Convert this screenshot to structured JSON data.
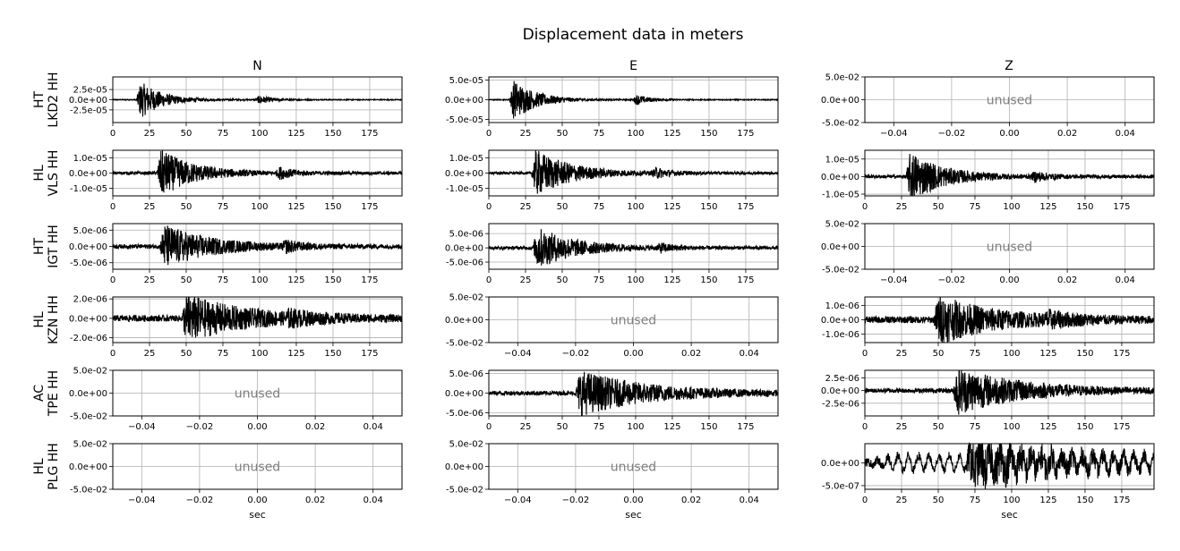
{
  "chart_data": {
    "type": "line",
    "title": "Displacement data in meters",
    "columns": [
      "N",
      "E",
      "Z"
    ],
    "xlabel": "sec",
    "unused_label": "unused",
    "line_color": "#000000",
    "grid": true,
    "time_xlim": [
      0,
      197
    ],
    "time_xticks": [
      "0",
      "25",
      "50",
      "75",
      "100",
      "125",
      "150",
      "175"
    ],
    "unused_xlim": [
      -0.05,
      0.05
    ],
    "unused_xticks": [
      "−0.04",
      "−0.02",
      "0.00",
      "0.02",
      "0.04"
    ],
    "unused_yticks": [
      "5.0e-02",
      "0.0e+00",
      "-5.0e-02"
    ],
    "stations": [
      {
        "network": "HT",
        "label": "LKD2 HH"
      },
      {
        "network": "HL",
        "label": "VLS HH"
      },
      {
        "network": "HT",
        "label": "IGT HH"
      },
      {
        "network": "HL",
        "label": "KZN HH"
      },
      {
        "network": "AC",
        "label": "TPE HH"
      },
      {
        "network": "HL",
        "label": "PLG HH"
      }
    ],
    "panels": [
      [
        {
          "used": true,
          "ylim": [
            -5.6e-05,
            5.6e-05
          ],
          "yticks": [
            2.5e-05,
            0,
            -2.5e-05
          ],
          "ytick_labels": [
            "2.5e-05",
            "0.0e+00",
            "-2.5e-05"
          ],
          "amplitude": 4.5e-05,
          "noise": 0.025,
          "events": [
            {
              "t": 19,
              "a": 1.0,
              "dur": 15
            },
            {
              "t": 100,
              "a": 0.22,
              "dur": 9
            }
          ]
        },
        {
          "used": true,
          "ylim": [
            -5.8e-05,
            5.8e-05
          ],
          "yticks": [
            5e-05,
            0,
            -5e-05
          ],
          "ytick_labels": [
            "5.0e-05",
            "0.0e+00",
            "-5.0e-05"
          ],
          "amplitude": 5e-05,
          "noise": 0.025,
          "events": [
            {
              "t": 17,
              "a": 1.0,
              "dur": 16
            },
            {
              "t": 101,
              "a": 0.25,
              "dur": 9
            }
          ]
        },
        {
          "used": false
        }
      ],
      [
        {
          "used": true,
          "ylim": [
            -1.5e-05,
            1.5e-05
          ],
          "yticks": [
            1e-05,
            0,
            -1e-05
          ],
          "ytick_labels": [
            "1.0e-05",
            "0.0e+00",
            "-1.0e-05"
          ],
          "amplitude": 1.5e-05,
          "noise": 0.07,
          "events": [
            {
              "t": 33,
              "a": 1.0,
              "dur": 22
            },
            {
              "t": 114,
              "a": 0.22,
              "dur": 9
            }
          ]
        },
        {
          "used": true,
          "ylim": [
            -1.5e-05,
            1.5e-05
          ],
          "yticks": [
            1e-05,
            0,
            -1e-05
          ],
          "ytick_labels": [
            "1.0e-05",
            "0.0e+00",
            "-1.0e-05"
          ],
          "amplitude": 1.5e-05,
          "noise": 0.06,
          "events": [
            {
              "t": 32,
              "a": 1.0,
              "dur": 24
            },
            {
              "t": 114,
              "a": 0.2,
              "dur": 9
            }
          ]
        },
        {
          "used": true,
          "ylim": [
            -1.1e-05,
            1.5e-05
          ],
          "yticks": [
            1e-05,
            0,
            -1e-05
          ],
          "ytick_labels": [
            "1.0e-05",
            "0.0e+00",
            "-1.0e-05"
          ],
          "amplitude": 1.4e-05,
          "noise": 0.07,
          "events": [
            {
              "t": 31,
              "a": 1.0,
              "dur": 22
            },
            {
              "t": 116,
              "a": 0.18,
              "dur": 9
            }
          ]
        }
      ],
      [
        {
          "used": true,
          "ylim": [
            -7e-06,
            7e-06
          ],
          "yticks": [
            5e-06,
            0,
            -5e-06
          ],
          "ytick_labels": [
            "5.0e-06",
            "0.0e+00",
            "-5.0e-06"
          ],
          "amplitude": 6.5e-06,
          "noise": 0.1,
          "events": [
            {
              "t": 35,
              "a": 1.0,
              "dur": 30
            },
            {
              "t": 118,
              "a": 0.22,
              "dur": 10
            }
          ]
        },
        {
          "used": true,
          "ylim": [
            -7.5e-06,
            8.5e-06
          ],
          "yticks": [
            5e-06,
            0,
            -5e-06
          ],
          "ytick_labels": [
            "5.0e-06",
            "0.0e+00",
            "-5.0e-06"
          ],
          "amplitude": 7e-06,
          "noise": 0.08,
          "events": [
            {
              "t": 33,
              "a": 1.0,
              "dur": 26
            },
            {
              "t": 117,
              "a": 0.18,
              "dur": 10
            }
          ]
        },
        {
          "used": false
        }
      ],
      [
        {
          "used": true,
          "ylim": [
            -2.5e-06,
            2.2e-06
          ],
          "yticks": [
            2e-06,
            0,
            -2e-06
          ],
          "ytick_labels": [
            "2.0e-06",
            "0.0e+00",
            "-2.0e-06"
          ],
          "amplitude": 2.3e-06,
          "noise": 0.14,
          "events": [
            {
              "t": 50,
              "a": 1.0,
              "dur": 40
            },
            {
              "t": 120,
              "a": 0.2,
              "dur": 20
            }
          ]
        },
        {
          "used": false
        },
        {
          "used": true,
          "ylim": [
            -1.6e-06,
            1.6e-06
          ],
          "yticks": [
            1e-06,
            0,
            -1e-06
          ],
          "ytick_labels": [
            "1.0e-06",
            "0.0e+00",
            "-1.0e-06"
          ],
          "amplitude": 1.6e-06,
          "noise": 0.15,
          "events": [
            {
              "t": 50,
              "a": 1.0,
              "dur": 38
            },
            {
              "t": 125,
              "a": 0.22,
              "dur": 20
            }
          ]
        }
      ],
      [
        {
          "used": false
        },
        {
          "used": true,
          "ylim": [
            -5.8e-06,
            5.8e-06
          ],
          "yticks": [
            5e-06,
            0,
            -5e-06
          ],
          "ytick_labels": [
            "5.0e-06",
            "0.0e+00",
            "-5.0e-06"
          ],
          "amplitude": 5.5e-06,
          "noise": 0.1,
          "events": [
            {
              "t": 62,
              "a": 1.0,
              "dur": 45
            }
          ]
        },
        {
          "used": true,
          "ylim": [
            -5e-06,
            4e-06
          ],
          "yticks": [
            2.5e-06,
            0,
            -2.5e-06
          ],
          "ytick_labels": [
            "2.5e-06",
            "0.0e+00",
            "-2.5e-06"
          ],
          "amplitude": 4.5e-06,
          "noise": 0.1,
          "events": [
            {
              "t": 63,
              "a": 1.0,
              "dur": 42
            }
          ]
        }
      ],
      [
        {
          "used": false
        },
        {
          "used": false
        },
        {
          "used": true,
          "ylim": [
            -5.8e-07,
            4.2e-07
          ],
          "yticks": [
            0,
            -5e-07
          ],
          "ytick_labels": [
            "0.0e+00",
            "-5.0e-07"
          ],
          "amplitude": 4.5e-07,
          "noise": 0.2,
          "events": [
            {
              "t": 72,
              "a": 1.0,
              "dur": 60
            }
          ],
          "longperiod": 0.35
        }
      ]
    ]
  }
}
